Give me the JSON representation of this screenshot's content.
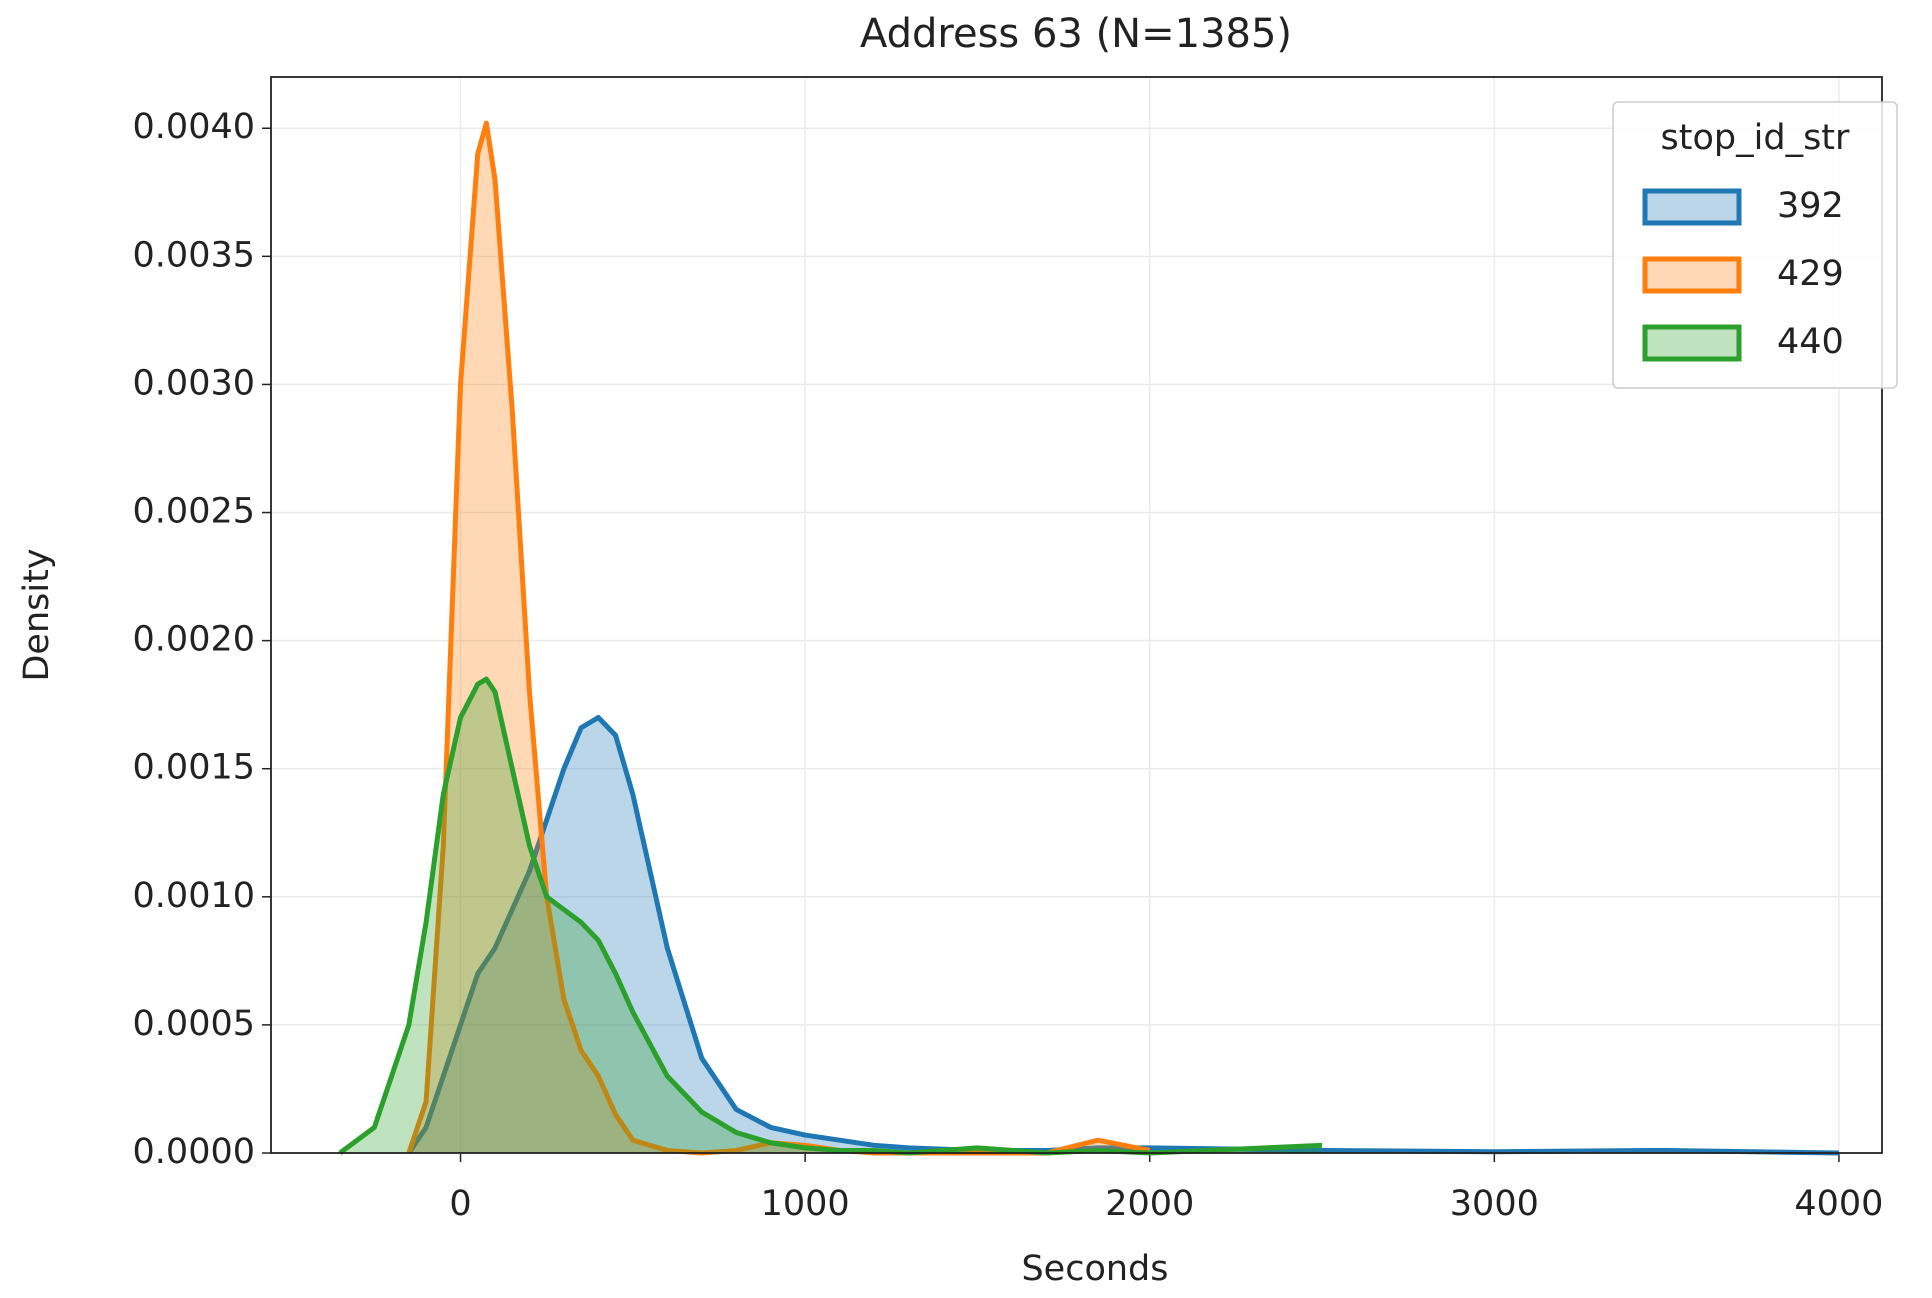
{
  "chart_data": {
    "type": "kde",
    "title": "Address 63 (N=1385)",
    "xlabel": "Seconds",
    "ylabel": "Density",
    "x": [
      -350,
      -250,
      -150,
      -100,
      -50,
      0,
      50,
      75,
      100,
      150,
      200,
      250,
      300,
      350,
      400,
      450,
      500,
      600,
      700,
      800,
      900,
      1000,
      1100,
      1200,
      1300,
      1500,
      1700,
      1850,
      2000,
      2500,
      3000,
      3500,
      4000
    ],
    "series": [
      {
        "name": "392",
        "color": "#1f77b4",
        "values": [
          null,
          null,
          0,
          0.0001,
          0.0003,
          0.0005,
          0.0007,
          0.00075,
          0.0008,
          0.00095,
          0.0011,
          0.0013,
          0.0015,
          0.00166,
          0.0017,
          0.00163,
          0.0014,
          0.0008,
          0.00037,
          0.00017,
          0.0001,
          7e-05,
          5e-05,
          3e-05,
          2e-05,
          1e-05,
          1e-05,
          2e-05,
          2e-05,
          1e-05,
          5e-06,
          1e-05,
          0
        ]
      },
      {
        "name": "429",
        "color": "#ff7f0e",
        "values": [
          null,
          null,
          0,
          0.0002,
          0.0012,
          0.003,
          0.0039,
          0.00402,
          0.0038,
          0.0029,
          0.0018,
          0.001,
          0.0006,
          0.0004,
          0.0003,
          0.00015,
          5e-05,
          1e-05,
          0,
          1e-05,
          4e-05,
          3e-05,
          1e-05,
          0,
          0,
          0,
          0,
          5e-05,
          1e-05,
          null,
          null,
          null,
          null
        ]
      },
      {
        "name": "440",
        "color": "#2ca02c",
        "values": [
          0,
          0.0001,
          0.0005,
          0.0009,
          0.0014,
          0.0017,
          0.00183,
          0.00185,
          0.0018,
          0.0015,
          0.0012,
          0.001,
          0.00095,
          0.0009,
          0.00083,
          0.0007,
          0.00055,
          0.0003,
          0.00016,
          8e-05,
          4e-05,
          2e-05,
          1e-05,
          1e-05,
          0,
          2e-05,
          0,
          1e-05,
          0,
          3e-05,
          null,
          null,
          null
        ]
      }
    ],
    "xlim": [
      -550,
      4125
    ],
    "ylim": [
      0,
      0.0042
    ],
    "xticks": [
      0,
      1000,
      2000,
      3000,
      4000
    ],
    "yticks": [
      {
        "value": 0,
        "label": "0.0000"
      },
      {
        "value": 0.0005,
        "label": "0.0005"
      },
      {
        "value": 0.001,
        "label": "0.0010"
      },
      {
        "value": 0.0015,
        "label": "0.0015"
      },
      {
        "value": 0.002,
        "label": "0.0020"
      },
      {
        "value": 0.0025,
        "label": "0.0025"
      },
      {
        "value": 0.003,
        "label": "0.0030"
      },
      {
        "value": 0.0035,
        "label": "0.0035"
      },
      {
        "value": 0.004,
        "label": "0.0040"
      }
    ],
    "grid": true,
    "legend_title": "stop_id_str",
    "legend_position": "upper right"
  }
}
